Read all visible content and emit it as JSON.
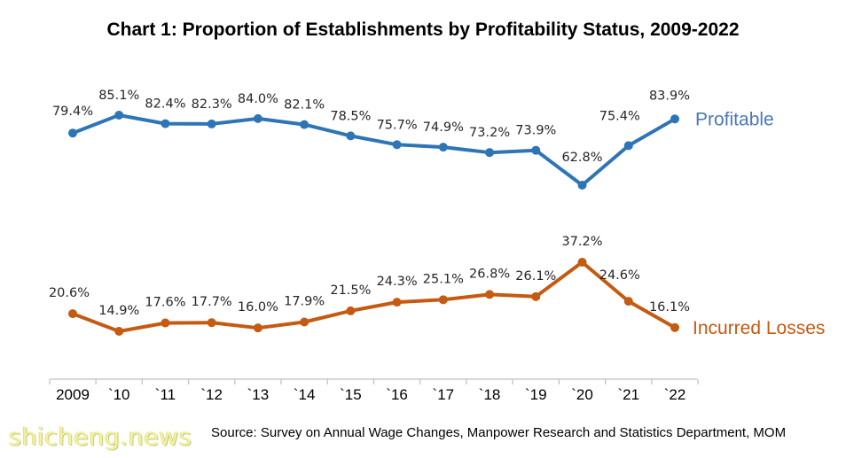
{
  "chart_data": {
    "type": "line",
    "title": "Chart 1: Proportion of Establishments by Profitability Status, 2009-2022",
    "categories": [
      "2009",
      "`10",
      "`11",
      "`12",
      "`13",
      "`14",
      "`15",
      "`16",
      "`17",
      "`18",
      "`19",
      "`20",
      "`21",
      "`22"
    ],
    "series": [
      {
        "name": "Profitable",
        "color": "#2e75b6",
        "label_color": "#4a78b8",
        "values": [
          79.4,
          85.1,
          82.4,
          82.3,
          84.0,
          82.1,
          78.5,
          75.7,
          74.9,
          73.2,
          73.9,
          62.8,
          75.4,
          83.9
        ],
        "labels": [
          "79.4%",
          "85.1%",
          "82.4%",
          "82.3%",
          "84.0%",
          "82.1%",
          "78.5%",
          "75.7%",
          "74.9%",
          "73.2%",
          "73.9%",
          "62.8%",
          "75.4%",
          "83.9%"
        ]
      },
      {
        "name": "Incurred Losses",
        "color": "#c55a11",
        "label_color": "#c55a11",
        "values": [
          20.6,
          14.9,
          17.6,
          17.7,
          16.0,
          17.9,
          21.5,
          24.3,
          25.1,
          26.8,
          26.1,
          37.2,
          24.6,
          16.1
        ],
        "labels": [
          "20.6%",
          "14.9%",
          "17.6%",
          "17.7%",
          "16.0%",
          "17.9%",
          "21.5%",
          "24.3%",
          "25.1%",
          "26.8%",
          "26.1%",
          "37.2%",
          "24.6%",
          "16.1%"
        ]
      }
    ],
    "grid": false,
    "legend": "inline-right"
  },
  "source_note": "Source: Survey on Annual Wage Changes, Manpower Research and Statistics Department, MOM",
  "watermark": "shicheng.news"
}
